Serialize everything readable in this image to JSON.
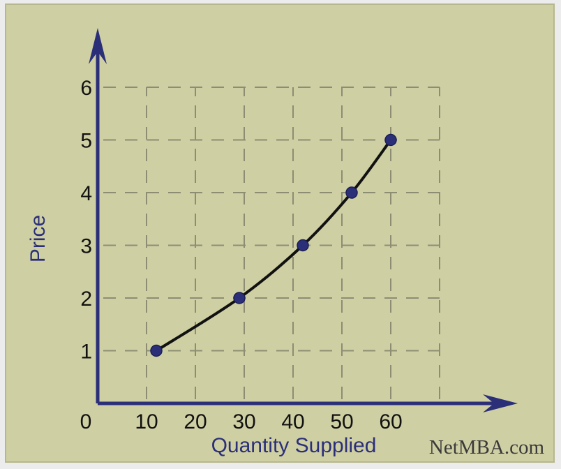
{
  "chart_data": {
    "type": "line",
    "title": "",
    "xlabel": "Quantity Supplied",
    "ylabel": "Price",
    "xlim": [
      0,
      70
    ],
    "ylim": [
      0,
      6
    ],
    "x_ticks": [
      10,
      20,
      30,
      40,
      50,
      60
    ],
    "y_ticks": [
      1,
      2,
      3,
      4,
      5,
      6
    ],
    "origin_label": "0",
    "grid": true,
    "grid_style": "dashed",
    "legend": "none",
    "series": [
      {
        "points": [
          {
            "x": 12,
            "y": 1
          },
          {
            "x": 29,
            "y": 2
          },
          {
            "x": 42,
            "y": 3
          },
          {
            "x": 52,
            "y": 4
          },
          {
            "x": 60,
            "y": 5
          }
        ]
      }
    ],
    "credit": "NetMBA.com"
  },
  "colors": {
    "background": "#ececec",
    "panel": "#cfcfa4",
    "panel_border": "#b7b78f",
    "axis": "#2b2f78",
    "grid": "#8d8d73",
    "curve": "#111111",
    "marker": "#2b2f78"
  }
}
